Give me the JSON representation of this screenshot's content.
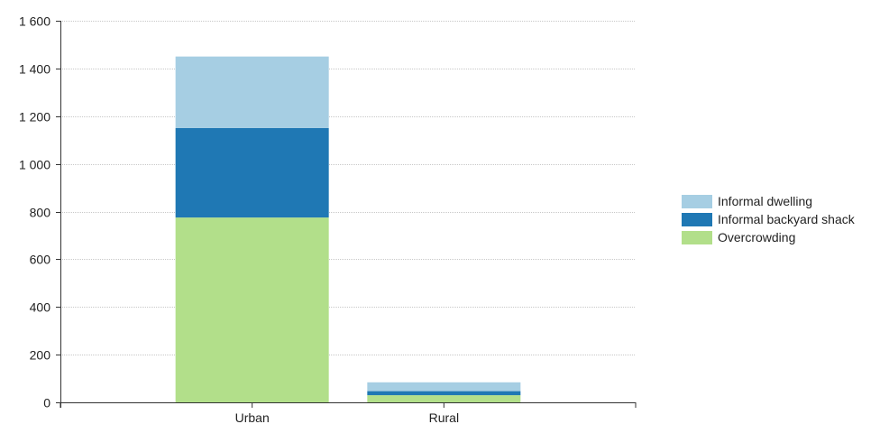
{
  "chart_data": {
    "type": "bar",
    "stacked": true,
    "categories": [
      "Urban",
      "Rural"
    ],
    "series": [
      {
        "name": "Overcrowding",
        "values": [
          775,
          30
        ],
        "color": "#b2df8a"
      },
      {
        "name": "Informal backyard shack",
        "values": [
          375,
          17
        ],
        "color": "#1f78b4"
      },
      {
        "name": "Informal dwelling",
        "values": [
          300,
          37
        ],
        "color": "#a6cee3"
      }
    ],
    "ylim": [
      0,
      1600
    ],
    "yticks": [
      0,
      200,
      400,
      600,
      800,
      1000,
      1200,
      1400,
      1600
    ],
    "ytick_labels": [
      "0",
      "200",
      "400",
      "600",
      "800",
      "1 000",
      "1 200",
      "1 400",
      "1 600"
    ],
    "grid": true,
    "legend_position": "right",
    "title": "",
    "xlabel": "",
    "ylabel": ""
  },
  "legend": {
    "items": [
      {
        "label": "Informal dwelling",
        "color": "#a6cee3"
      },
      {
        "label": "Informal backyard shack",
        "color": "#1f78b4"
      },
      {
        "label": "Overcrowding",
        "color": "#b2df8a"
      }
    ]
  }
}
